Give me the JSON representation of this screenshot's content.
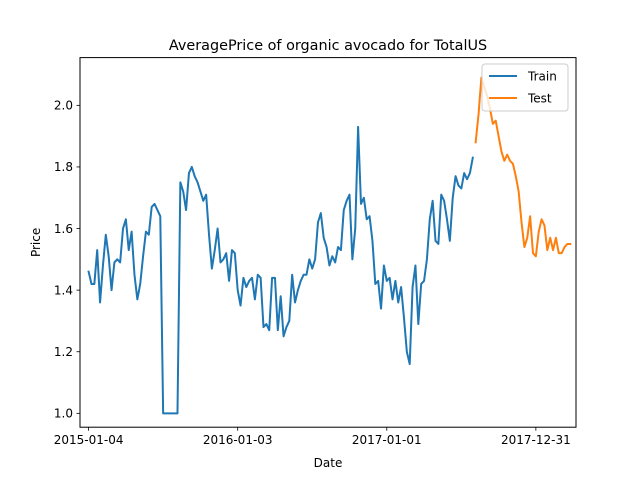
{
  "chart_data": {
    "type": "line",
    "title": "AveragePrice of organic avocado for TotalUS",
    "xlabel": "Date",
    "ylabel": "Price",
    "x_range": [
      "2014-12-14",
      "2018-04-08"
    ],
    "ylim": [
      0.955,
      2.155
    ],
    "x_ticks": [
      "2015-01-04",
      "2016-01-03",
      "2017-01-01",
      "2017-12-31"
    ],
    "y_ticks": [
      "1.0",
      "1.2",
      "1.4",
      "1.6",
      "1.8",
      "2.0"
    ],
    "y_tick_values": [
      1.0,
      1.2,
      1.4,
      1.6,
      1.8,
      2.0
    ],
    "grid": false,
    "legend_position": "top-right",
    "series": [
      {
        "name": "Train",
        "color": "#1f77b4",
        "points": [
          [
            "2015-01-04",
            1.46
          ],
          [
            "2015-01-11",
            1.42
          ],
          [
            "2015-01-18",
            1.42
          ],
          [
            "2015-01-25",
            1.53
          ],
          [
            "2015-02-01",
            1.36
          ],
          [
            "2015-02-08",
            1.48
          ],
          [
            "2015-02-15",
            1.58
          ],
          [
            "2015-02-22",
            1.51
          ],
          [
            "2015-03-01",
            1.4
          ],
          [
            "2015-03-08",
            1.49
          ],
          [
            "2015-03-15",
            1.5
          ],
          [
            "2015-03-22",
            1.49
          ],
          [
            "2015-03-29",
            1.6
          ],
          [
            "2015-04-05",
            1.63
          ],
          [
            "2015-04-12",
            1.53
          ],
          [
            "2015-04-19",
            1.59
          ],
          [
            "2015-04-26",
            1.45
          ],
          [
            "2015-05-03",
            1.37
          ],
          [
            "2015-05-10",
            1.42
          ],
          [
            "2015-05-17",
            1.51
          ],
          [
            "2015-05-24",
            1.59
          ],
          [
            "2015-05-31",
            1.58
          ],
          [
            "2015-06-07",
            1.67
          ],
          [
            "2015-06-14",
            1.68
          ],
          [
            "2015-06-21",
            1.66
          ],
          [
            "2015-06-28",
            1.64
          ],
          [
            "2015-07-05",
            1.0
          ],
          [
            "2015-07-12",
            1.0
          ],
          [
            "2015-07-19",
            1.0
          ],
          [
            "2015-07-26",
            1.0
          ],
          [
            "2015-08-02",
            1.0
          ],
          [
            "2015-08-09",
            1.0
          ],
          [
            "2015-08-16",
            1.75
          ],
          [
            "2015-08-23",
            1.72
          ],
          [
            "2015-08-30",
            1.66
          ],
          [
            "2015-09-06",
            1.78
          ],
          [
            "2015-09-13",
            1.8
          ],
          [
            "2015-09-20",
            1.77
          ],
          [
            "2015-09-27",
            1.75
          ],
          [
            "2015-10-04",
            1.72
          ],
          [
            "2015-10-11",
            1.69
          ],
          [
            "2015-10-18",
            1.71
          ],
          [
            "2015-10-25",
            1.58
          ],
          [
            "2015-11-01",
            1.47
          ],
          [
            "2015-11-08",
            1.53
          ],
          [
            "2015-11-15",
            1.6
          ],
          [
            "2015-11-22",
            1.49
          ],
          [
            "2015-11-29",
            1.5
          ],
          [
            "2015-12-06",
            1.52
          ],
          [
            "2015-12-13",
            1.43
          ],
          [
            "2015-12-20",
            1.53
          ],
          [
            "2015-12-27",
            1.52
          ],
          [
            "2016-01-03",
            1.4
          ],
          [
            "2016-01-10",
            1.35
          ],
          [
            "2016-01-17",
            1.44
          ],
          [
            "2016-01-24",
            1.41
          ],
          [
            "2016-01-31",
            1.43
          ],
          [
            "2016-02-07",
            1.44
          ],
          [
            "2016-02-14",
            1.37
          ],
          [
            "2016-02-21",
            1.45
          ],
          [
            "2016-02-28",
            1.44
          ],
          [
            "2016-03-06",
            1.28
          ],
          [
            "2016-03-13",
            1.29
          ],
          [
            "2016-03-20",
            1.27
          ],
          [
            "2016-03-27",
            1.44
          ],
          [
            "2016-04-03",
            1.44
          ],
          [
            "2016-04-10",
            1.27
          ],
          [
            "2016-04-17",
            1.38
          ],
          [
            "2016-04-24",
            1.25
          ],
          [
            "2016-05-01",
            1.28
          ],
          [
            "2016-05-08",
            1.3
          ],
          [
            "2016-05-15",
            1.45
          ],
          [
            "2016-05-22",
            1.36
          ],
          [
            "2016-05-29",
            1.4
          ],
          [
            "2016-06-05",
            1.43
          ],
          [
            "2016-06-12",
            1.45
          ],
          [
            "2016-06-19",
            1.45
          ],
          [
            "2016-06-26",
            1.5
          ],
          [
            "2016-07-03",
            1.47
          ],
          [
            "2016-07-10",
            1.5
          ],
          [
            "2016-07-17",
            1.62
          ],
          [
            "2016-07-24",
            1.65
          ],
          [
            "2016-07-31",
            1.57
          ],
          [
            "2016-08-07",
            1.54
          ],
          [
            "2016-08-14",
            1.48
          ],
          [
            "2016-08-21",
            1.51
          ],
          [
            "2016-08-28",
            1.49
          ],
          [
            "2016-09-04",
            1.54
          ],
          [
            "2016-09-11",
            1.53
          ],
          [
            "2016-09-18",
            1.66
          ],
          [
            "2016-09-25",
            1.69
          ],
          [
            "2016-10-02",
            1.71
          ],
          [
            "2016-10-09",
            1.5
          ],
          [
            "2016-10-16",
            1.6
          ],
          [
            "2016-10-23",
            1.93
          ],
          [
            "2016-10-30",
            1.68
          ],
          [
            "2016-11-06",
            1.7
          ],
          [
            "2016-11-13",
            1.63
          ],
          [
            "2016-11-20",
            1.64
          ],
          [
            "2016-11-27",
            1.56
          ],
          [
            "2016-12-04",
            1.42
          ],
          [
            "2016-12-11",
            1.43
          ],
          [
            "2016-12-18",
            1.34
          ],
          [
            "2016-12-25",
            1.48
          ],
          [
            "2017-01-01",
            1.43
          ],
          [
            "2017-01-08",
            1.44
          ],
          [
            "2017-01-15",
            1.37
          ],
          [
            "2017-01-22",
            1.43
          ],
          [
            "2017-01-29",
            1.36
          ],
          [
            "2017-02-05",
            1.41
          ],
          [
            "2017-02-12",
            1.31
          ],
          [
            "2017-02-19",
            1.2
          ],
          [
            "2017-02-26",
            1.16
          ],
          [
            "2017-03-05",
            1.41
          ],
          [
            "2017-03-12",
            1.48
          ],
          [
            "2017-03-19",
            1.29
          ],
          [
            "2017-03-26",
            1.42
          ],
          [
            "2017-04-02",
            1.43
          ],
          [
            "2017-04-09",
            1.5
          ],
          [
            "2017-04-16",
            1.63
          ],
          [
            "2017-04-23",
            1.69
          ],
          [
            "2017-04-30",
            1.56
          ],
          [
            "2017-05-07",
            1.55
          ],
          [
            "2017-05-14",
            1.71
          ],
          [
            "2017-05-21",
            1.69
          ],
          [
            "2017-05-28",
            1.63
          ],
          [
            "2017-06-04",
            1.56
          ],
          [
            "2017-06-11",
            1.7
          ],
          [
            "2017-06-18",
            1.77
          ],
          [
            "2017-06-25",
            1.74
          ],
          [
            "2017-07-02",
            1.73
          ],
          [
            "2017-07-09",
            1.78
          ],
          [
            "2017-07-16",
            1.76
          ],
          [
            "2017-07-23",
            1.78
          ],
          [
            "2017-07-30",
            1.83
          ]
        ]
      },
      {
        "name": "Test",
        "color": "#ff7f0e",
        "points": [
          [
            "2017-08-06",
            1.88
          ],
          [
            "2017-08-13",
            1.97
          ],
          [
            "2017-08-20",
            2.09
          ],
          [
            "2017-08-27",
            2.06
          ],
          [
            "2017-09-03",
            2.03
          ],
          [
            "2017-09-10",
            1.99
          ],
          [
            "2017-09-17",
            1.94
          ],
          [
            "2017-09-24",
            1.95
          ],
          [
            "2017-10-01",
            1.9
          ],
          [
            "2017-10-08",
            1.85
          ],
          [
            "2017-10-15",
            1.82
          ],
          [
            "2017-10-22",
            1.84
          ],
          [
            "2017-10-29",
            1.82
          ],
          [
            "2017-11-05",
            1.81
          ],
          [
            "2017-11-12",
            1.77
          ],
          [
            "2017-11-19",
            1.72
          ],
          [
            "2017-11-26",
            1.62
          ],
          [
            "2017-12-03",
            1.54
          ],
          [
            "2017-12-10",
            1.57
          ],
          [
            "2017-12-17",
            1.64
          ],
          [
            "2017-12-24",
            1.52
          ],
          [
            "2017-12-31",
            1.51
          ],
          [
            "2018-01-07",
            1.59
          ],
          [
            "2018-01-14",
            1.63
          ],
          [
            "2018-01-21",
            1.61
          ],
          [
            "2018-01-28",
            1.53
          ],
          [
            "2018-02-04",
            1.57
          ],
          [
            "2018-02-11",
            1.53
          ],
          [
            "2018-02-18",
            1.57
          ],
          [
            "2018-02-25",
            1.52
          ],
          [
            "2018-03-04",
            1.52
          ],
          [
            "2018-03-11",
            1.54
          ],
          [
            "2018-03-18",
            1.55
          ],
          [
            "2018-03-25",
            1.55
          ]
        ]
      }
    ]
  }
}
